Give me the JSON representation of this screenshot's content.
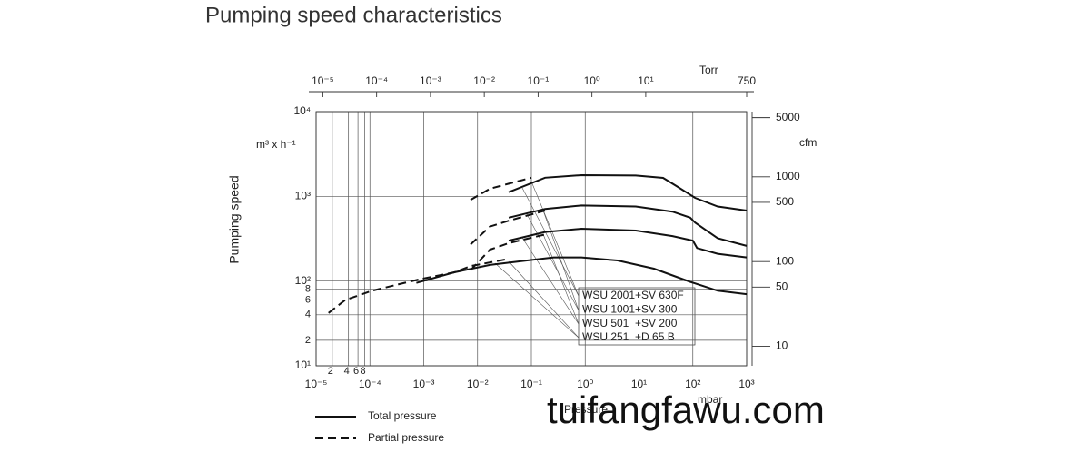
{
  "chart_data": {
    "type": "line",
    "title": "Pumping speed characteristics",
    "y_label": "Pumping speed",
    "y_unit": "m³ x h⁻¹",
    "x_label": "Pressure",
    "x_unit": "mbar",
    "x2_unit": "Torr",
    "y2_unit": "cfm",
    "log_x": true,
    "log_y": true,
    "grid": true,
    "xlim": [
      1e-05,
      1000
    ],
    "xticks": [
      {
        "value": 1e-05,
        "label": "10⁻⁵"
      },
      {
        "value": 0.0001,
        "label": "10⁻⁴"
      },
      {
        "value": 0.001,
        "label": "10⁻³"
      },
      {
        "value": 0.01,
        "label": "10⁻²"
      },
      {
        "value": 0.1,
        "label": "10⁻¹"
      },
      {
        "value": 1,
        "label": "10⁰"
      },
      {
        "value": 10,
        "label": "10¹"
      },
      {
        "value": 100,
        "label": "10²"
      },
      {
        "value": 1000,
        "label": "10³"
      }
    ],
    "x_minor_ticks": [
      {
        "value": 2e-05,
        "label": "2"
      },
      {
        "value": 4e-05,
        "label": "4"
      },
      {
        "value": 6e-05,
        "label": "6"
      },
      {
        "value": 8e-05,
        "label": "8"
      }
    ],
    "ylim": [
      10,
      10000
    ],
    "yticks": [
      {
        "value": 10,
        "label": "10¹"
      },
      {
        "value": 100,
        "label": "10²"
      },
      {
        "value": 1000,
        "label": "10³"
      },
      {
        "value": 10000,
        "label": "10⁴"
      }
    ],
    "y_minor_ticks": [
      {
        "value": 20,
        "label": "2"
      },
      {
        "value": 40,
        "label": "4"
      },
      {
        "value": 60,
        "label": "6"
      },
      {
        "value": 80,
        "label": "8"
      }
    ],
    "x2lim": [
      7.5e-06,
      750
    ],
    "x2ticks": [
      {
        "value": 1e-05,
        "label": "10⁻⁵"
      },
      {
        "value": 0.0001,
        "label": "10⁻⁴"
      },
      {
        "value": 0.001,
        "label": "10⁻³"
      },
      {
        "value": 0.01,
        "label": "10⁻²"
      },
      {
        "value": 0.1,
        "label": "10⁻¹"
      },
      {
        "value": 1,
        "label": "10⁰"
      },
      {
        "value": 10,
        "label": "10¹"
      },
      750
    ],
    "y2lim": [
      5.886,
      5886
    ],
    "y2ticks": [
      10,
      50,
      100,
      500,
      1000,
      5000
    ],
    "styles": {
      "total": {
        "label": "Total pressure",
        "dash": false
      },
      "partial": {
        "label": "Partial pressure",
        "dash": true
      }
    },
    "color": "#111111",
    "series": [
      {
        "name": "WSU 2001+SV 630F",
        "total": {
          "x": [
            0.038,
            0.18,
            0.85,
            8.7,
            28,
            50,
            110,
            290,
            1000
          ],
          "values": [
            1120,
            1660,
            1780,
            1760,
            1650,
            1320,
            960,
            760,
            680
          ]
        },
        "partial": {
          "x": [
            0.0074,
            0.017,
            0.038,
            0.1
          ],
          "values": [
            910,
            1230,
            1410,
            1660
          ]
        }
      },
      {
        "name": "WSU 1001+SV 300",
        "total": {
          "x": [
            0.038,
            0.18,
            0.85,
            8.7,
            42,
            89,
            110,
            290,
            1000
          ],
          "values": [
            560,
            710,
            780,
            760,
            660,
            560,
            490,
            320,
            260
          ]
        },
        "partial": {
          "x": [
            0.0074,
            0.017,
            0.038,
            0.18
          ],
          "values": [
            270,
            440,
            515,
            680
          ]
        }
      },
      {
        "name": "WSU 501  +SV 200",
        "total": {
          "x": [
            0.038,
            0.18,
            0.85,
            8.7,
            42,
            100,
            120,
            290,
            1000
          ],
          "values": [
            300,
            380,
            415,
            395,
            340,
            300,
            245,
            210,
            190
          ]
        },
        "partial": {
          "x": [
            0.0074,
            0.017,
            0.038,
            0.18
          ],
          "values": [
            134,
            235,
            280,
            355
          ]
        }
      },
      {
        "name": "WSU 251  +D 65 B",
        "total": {
          "x": [
            0.00073,
            0.0037,
            0.017,
            0.083,
            0.26,
            0.85,
            4,
            19,
            89,
            290,
            1000
          ],
          "values": [
            95,
            127,
            155,
            175,
            190,
            190,
            175,
            140,
            98,
            77,
            70
          ]
        },
        "partial": {
          "x": [
            1.7e-05,
            3.5e-05,
            0.00011,
            0.00078,
            0.0037,
            0.0074,
            0.038
          ],
          "values": [
            42,
            60,
            77,
            104,
            127,
            150,
            183
          ]
        }
      }
    ]
  },
  "watermark": "tuifangfawu.com"
}
